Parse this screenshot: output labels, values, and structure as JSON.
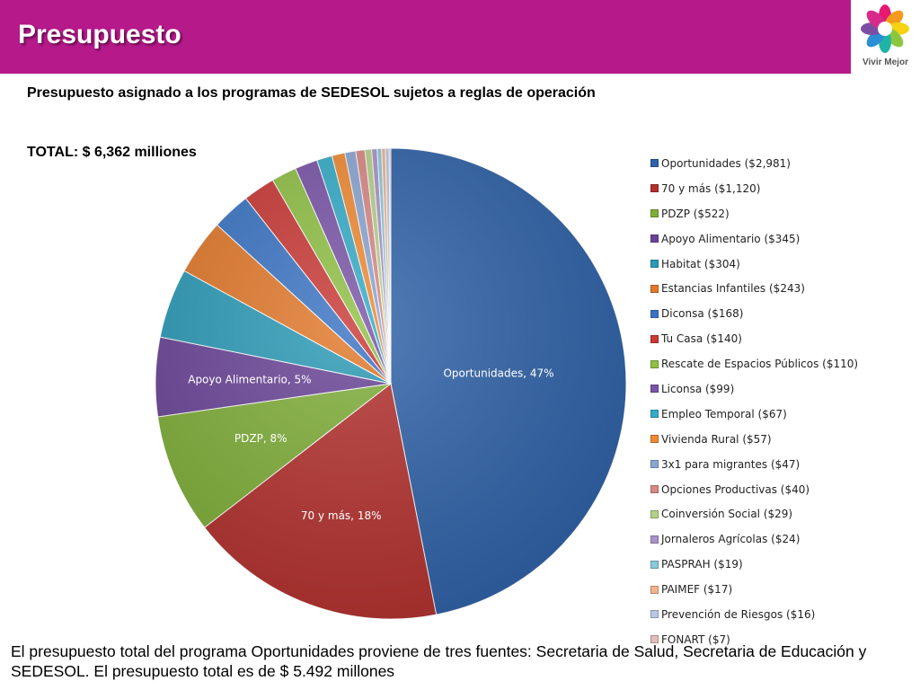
{
  "header": {
    "title": "Presupuesto",
    "logo_text": "Vivir Mejor",
    "background": "#b5198a"
  },
  "chart_title": "Presupuesto asignado a los programas de SEDESOL sujetos a reglas de operación",
  "chart_total": "TOTAL: $ 6,362 milliones",
  "chart_data": {
    "type": "pie",
    "title": "Presupuesto asignado a los programas de SEDESOL sujetos a reglas de operación",
    "categories": [
      "Oportunidades",
      "70 y más",
      "PDZP",
      "Apoyo Alimentario",
      "Habitat",
      "Estancias Infantiles",
      "Diconsa",
      "Tu Casa",
      "Rescate de Espacios Públicos",
      "Liconsa",
      "Empleo Temporal",
      "Vivienda Rural",
      "3x1 para migrantes",
      "Opciones Productivas",
      "Coinversión Social",
      "Jornaleros Agrícolas",
      "PASPRAH",
      "PAIMEF",
      "Prevención de Riesgos",
      "FONART"
    ],
    "values": [
      2981,
      1120,
      522,
      345,
      304,
      243,
      168,
      140,
      110,
      99,
      67,
      57,
      47,
      40,
      29,
      24,
      19,
      17,
      16,
      7
    ],
    "legend_labels": [
      "Oportunidades ($2,981)",
      "70 y más ($1,120)",
      "PDZP ($522)",
      "Apoyo Alimentario ($345)",
      "Habitat ($304)",
      "Estancias Infantiles ($243)",
      "Diconsa ($168)",
      "Tu Casa ($140)",
      "Rescate de Espacios Públicos ($110)",
      "Liconsa ($99)",
      "Empleo Temporal ($67)",
      "Vivienda Rural ($57)",
      "3x1 para migrantes ($47)",
      "Opciones Productivas ($40)",
      "Coinversión Social ($29)",
      "Jornaleros Agrícolas ($24)",
      "PASPRAH ($19)",
      "PAIMEF ($17)",
      "Prevención de Riesgos  ($16)",
      "FONART ($7)"
    ],
    "data_labels": [
      {
        "index": 0,
        "text": "Oportunidades, 47%"
      },
      {
        "index": 1,
        "text": "70 y más, 18%"
      },
      {
        "index": 2,
        "text": "PDZP, 8%"
      },
      {
        "index": 3,
        "text": "Apoyo Alimentario, 5%"
      }
    ],
    "colors": [
      "#2f62a8",
      "#b3312e",
      "#7fae38",
      "#6a4497",
      "#2b9ab6",
      "#e1782a",
      "#3b74c4",
      "#c93936",
      "#8fc045",
      "#7a55a8",
      "#35acc8",
      "#f08a35",
      "#8aa6d3",
      "#d98886",
      "#b5d189",
      "#a894c8",
      "#88c9dc",
      "#f3b48b",
      "#b8c7e3",
      "#e3bcbb"
    ],
    "legend_position": "right",
    "start_angle": "12 o'clock",
    "direction": "clockwise"
  },
  "footer_note": "El presupuesto total del programa Oportunidades proviene de tres fuentes: Secretaria de Salud,  Secretaria de Educación y SEDESOL. El presupuesto total es de $ 5.492 millones"
}
